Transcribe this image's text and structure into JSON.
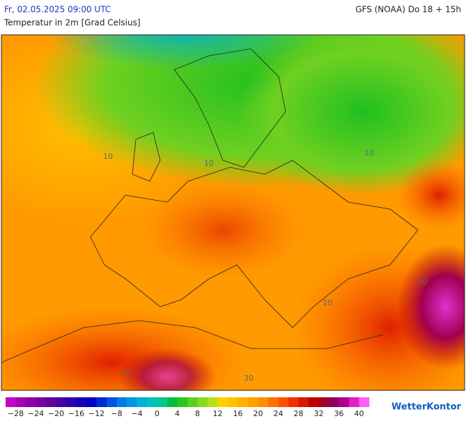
{
  "header": {
    "datetime": "Fr, 02.05.2025 09:00 UTC",
    "model": "GFS (NOAA) Do 18 + 15h",
    "subtitle": "Temperatur in 2m [Grad Celsius]"
  },
  "map": {
    "contour_labels": [
      "10",
      "10",
      "10",
      "10",
      "30",
      "30",
      "30"
    ]
  },
  "legend": {
    "colors": [
      "#c400c4",
      "#a800b4",
      "#9000a8",
      "#7800a0",
      "#60009c",
      "#4800a4",
      "#3000ac",
      "#1800b4",
      "#0000c4",
      "#0028d4",
      "#0054e0",
      "#007ce8",
      "#0098e0",
      "#00b0d8",
      "#00c0c4",
      "#00c890",
      "#00c040",
      "#28c820",
      "#58d020",
      "#88d820",
      "#b4e020",
      "#ffd000",
      "#ffc000",
      "#ffb000",
      "#ffa000",
      "#ff8c00",
      "#ff7000",
      "#ff5000",
      "#f03000",
      "#d81800",
      "#c00000",
      "#a00028",
      "#900058",
      "#b00090",
      "#e020c8",
      "#ff60f0"
    ],
    "labels": [
      "−28",
      "−24",
      "−20",
      "−16",
      "−12",
      "−8",
      "−4",
      "0",
      "4",
      "8",
      "12",
      "16",
      "20",
      "24",
      "28",
      "32",
      "36",
      "40"
    ]
  },
  "brand": "WetterKontor"
}
